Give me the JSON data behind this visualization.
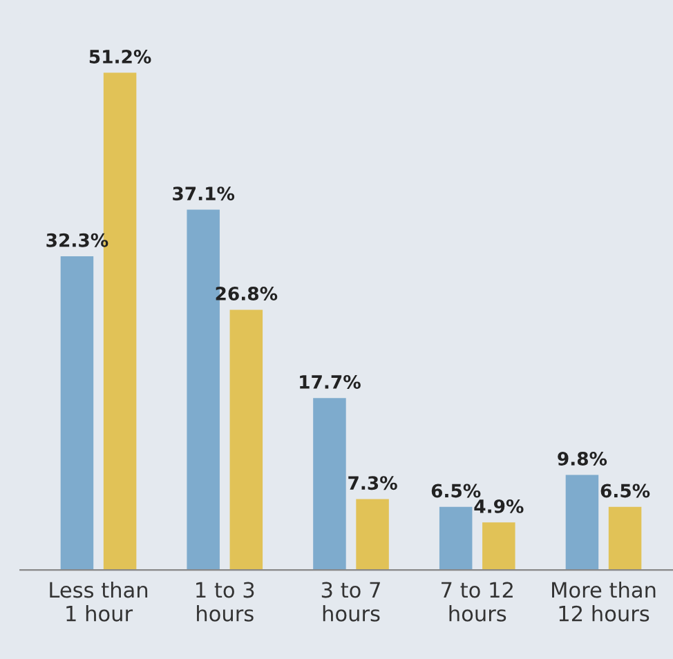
{
  "chart_data": {
    "type": "bar",
    "categories": [
      "Less than\n1 hour",
      "1 to 3\nhours",
      "3 to 7\nhours",
      "7 to 12\nhours",
      "More than\n12 hours"
    ],
    "series": [
      {
        "color": "#7eabcd",
        "values": [
          32.3,
          37.1,
          17.7,
          6.5,
          9.8
        ],
        "value_labels": [
          "32.3%",
          "37.1%",
          "17.7%",
          "6.5%",
          "9.8%"
        ]
      },
      {
        "color": "#e1c257",
        "values": [
          51.2,
          26.8,
          7.3,
          4.9,
          6.5
        ],
        "value_labels": [
          "51.2%",
          "26.8%",
          "7.3%",
          "4.9%",
          "6.5%"
        ]
      }
    ],
    "grid": false,
    "legend": false
  }
}
